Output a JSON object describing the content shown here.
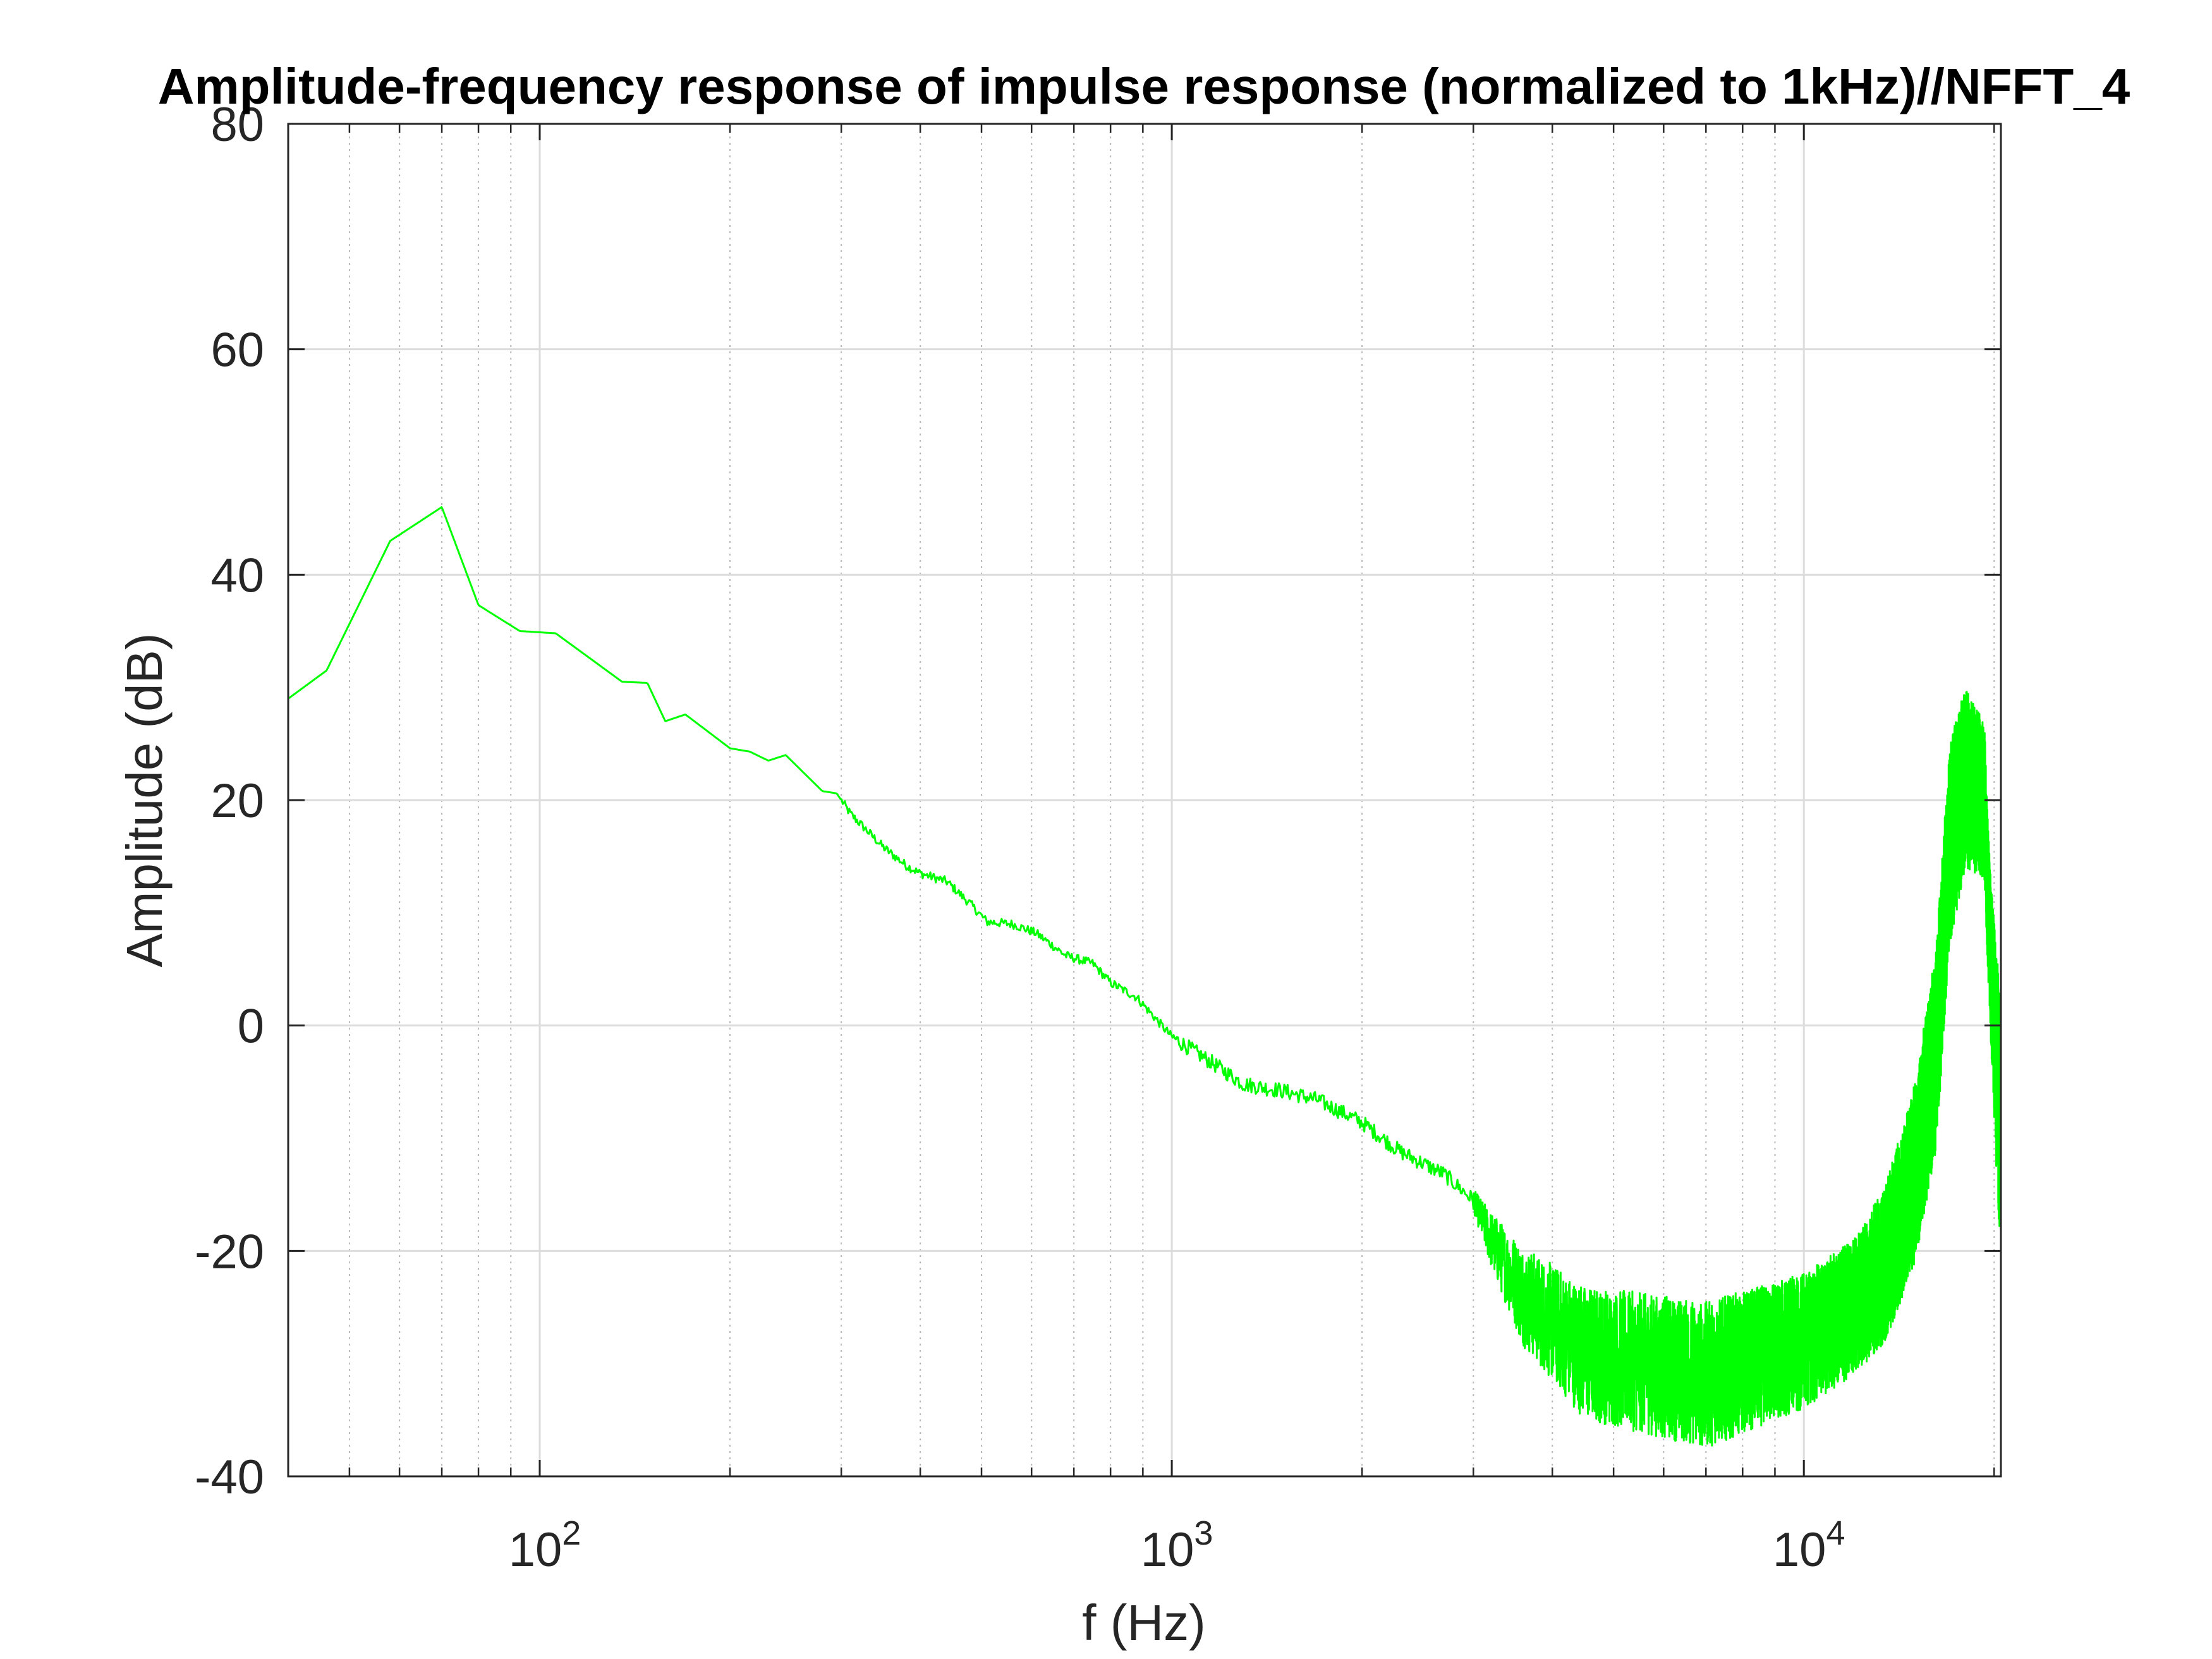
{
  "chart_data": {
    "type": "line",
    "title": "Amplitude-frequency response of impulse response (normalized to 1kHz)//NFFT_4",
    "xlabel": "f (Hz)",
    "ylabel": "Amplitude (dB)",
    "x_scale": "log",
    "xlim": [
      40,
      20500
    ],
    "ylim": [
      -40,
      80
    ],
    "x_major_ticks": [
      100,
      1000,
      10000
    ],
    "x_tick_labels": [
      {
        "base": "10",
        "exp": "2"
      },
      {
        "base": "10",
        "exp": "3"
      },
      {
        "base": "10",
        "exp": "4"
      }
    ],
    "y_ticks": [
      -40,
      -20,
      0,
      20,
      40,
      60,
      80
    ],
    "y_tick_labels": [
      "-40",
      "-20",
      "0",
      "20",
      "40",
      "60",
      "80"
    ],
    "grid": true,
    "minor_grid": true,
    "line_color": "#00ff00",
    "series": [
      {
        "values_smooth": [
          [
            40,
            29
          ],
          [
            46,
            31.5
          ],
          [
            58,
            43
          ],
          [
            70,
            46
          ],
          [
            80,
            37.3
          ],
          [
            93,
            35
          ],
          [
            106,
            34.8
          ],
          [
            135,
            30.5
          ],
          [
            148,
            30.4
          ],
          [
            158,
            27
          ],
          [
            170,
            27.6
          ],
          [
            200,
            24.6
          ],
          [
            215,
            24.3
          ],
          [
            230,
            23.5
          ],
          [
            245,
            24
          ],
          [
            280,
            20.8
          ],
          [
            295,
            20.6
          ],
          [
            310,
            18.8
          ],
          [
            350,
            15.8
          ],
          [
            380,
            14.2
          ],
          [
            400,
            13.5
          ],
          [
            440,
            12.8
          ],
          [
            480,
            10.8
          ],
          [
            510,
            9.2
          ],
          [
            560,
            9.0
          ],
          [
            610,
            8.2
          ],
          [
            680,
            6.2
          ],
          [
            750,
            5.5
          ],
          [
            800,
            3.8
          ],
          [
            880,
            2.5
          ],
          [
            1000,
            -1.0
          ],
          [
            1150,
            -3.2
          ],
          [
            1300,
            -5.2
          ],
          [
            1500,
            -5.8
          ],
          [
            1700,
            -6.6
          ],
          [
            2000,
            -8.6
          ],
          [
            2300,
            -11.2
          ],
          [
            2700,
            -13.2
          ],
          [
            3000,
            -15.5
          ]
        ],
        "noise_band": [
          [
            3000,
            -15.5,
            1.0
          ],
          [
            3200,
            -19,
            2.5
          ],
          [
            3600,
            -24,
            4.5
          ],
          [
            4500,
            -29,
            6
          ],
          [
            7000,
            -31,
            6.5
          ],
          [
            10000,
            -28,
            6
          ],
          [
            12000,
            -25,
            6
          ],
          [
            13500,
            -21,
            7
          ],
          [
            15000,
            -13,
            8
          ],
          [
            16200,
            -2,
            9
          ],
          [
            17000,
            16,
            9
          ],
          [
            18000,
            22,
            8
          ],
          [
            19300,
            20,
            7
          ],
          [
            19700,
            7,
            7
          ],
          [
            20500,
            -10,
            12
          ]
        ]
      }
    ]
  }
}
